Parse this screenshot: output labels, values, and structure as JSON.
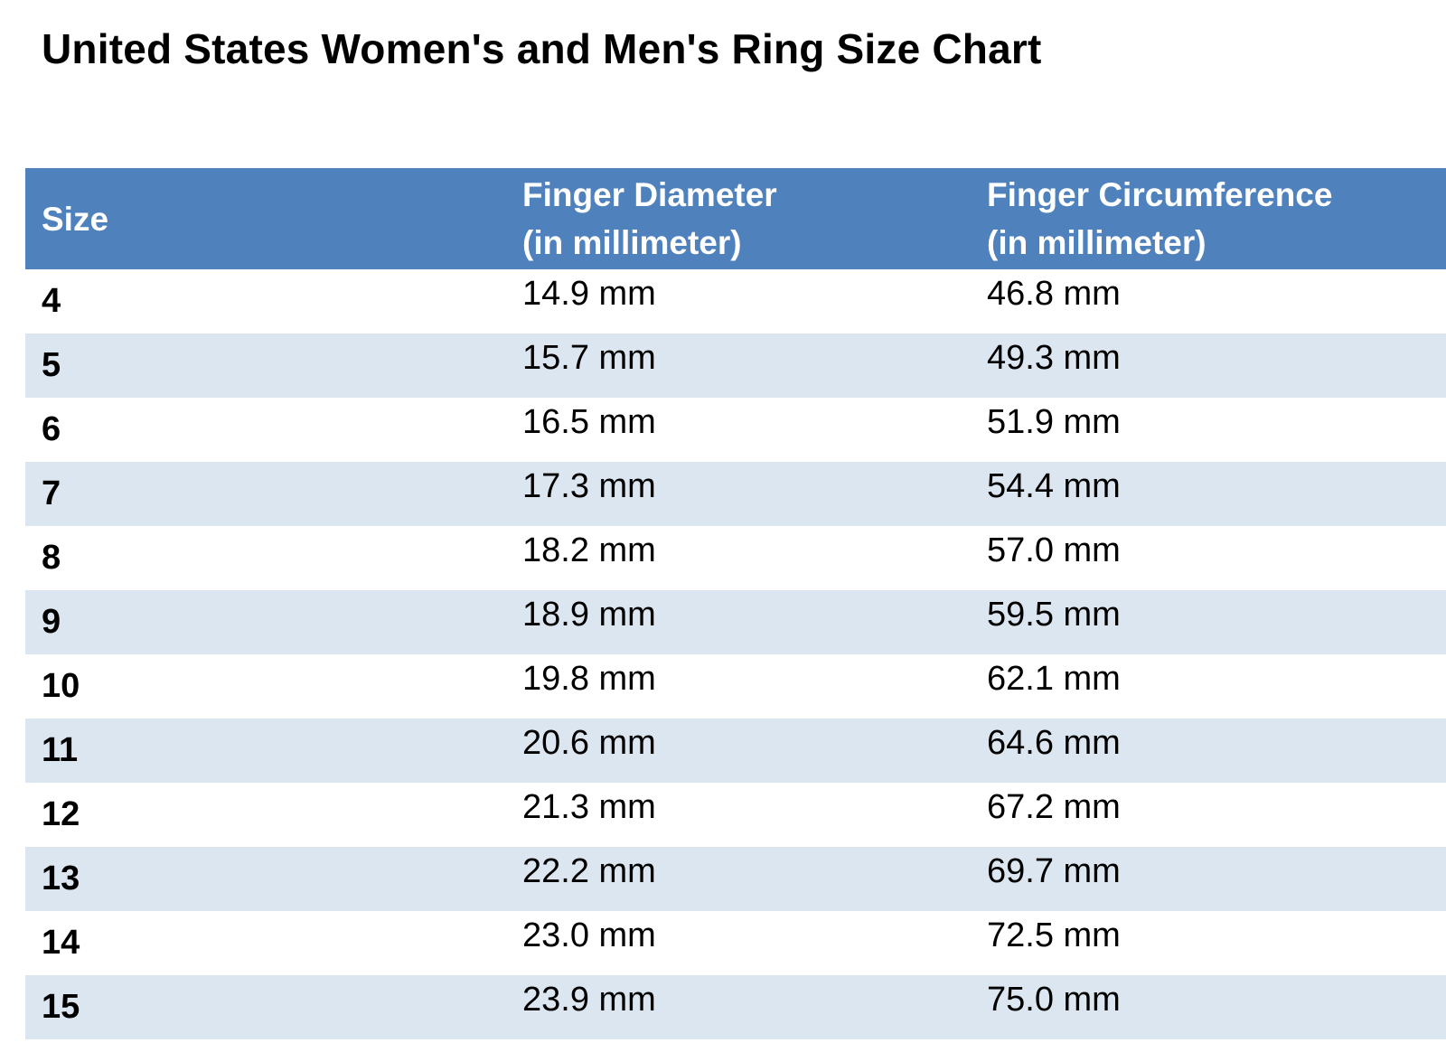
{
  "title": "United States Women's and Men's Ring Size Chart",
  "colors": {
    "header_bg": "#4f81bd",
    "header_text": "#ffffff",
    "band_row": "#dce6f1",
    "plain_row": "#ffffff"
  },
  "table": {
    "headers": {
      "size": "Size",
      "diameter_line1": "Finger Diameter",
      "diameter_line2": "(in millimeter)",
      "circumference_line1": "Finger Circumference",
      "circumference_line2": "(in millimeter)"
    },
    "rows": [
      {
        "size": "4",
        "diameter": "14.9 mm",
        "circumference": "46.8 mm"
      },
      {
        "size": "5",
        "diameter": "15.7 mm",
        "circumference": "49.3 mm"
      },
      {
        "size": "6",
        "diameter": "16.5 mm",
        "circumference": "51.9 mm"
      },
      {
        "size": "7",
        "diameter": "17.3 mm",
        "circumference": "54.4 mm"
      },
      {
        "size": "8",
        "diameter": "18.2 mm",
        "circumference": "57.0 mm"
      },
      {
        "size": "9",
        "diameter": "18.9 mm",
        "circumference": "59.5 mm"
      },
      {
        "size": "10",
        "diameter": "19.8 mm",
        "circumference": "62.1 mm"
      },
      {
        "size": "11",
        "diameter": "20.6 mm",
        "circumference": "64.6 mm"
      },
      {
        "size": "12",
        "diameter": "21.3 mm",
        "circumference": "67.2 mm"
      },
      {
        "size": "13",
        "diameter": "22.2 mm",
        "circumference": "69.7 mm"
      },
      {
        "size": "14",
        "diameter": "23.0 mm",
        "circumference": "72.5 mm"
      },
      {
        "size": "15",
        "diameter": "23.9 mm",
        "circumference": "75.0 mm"
      }
    ]
  }
}
